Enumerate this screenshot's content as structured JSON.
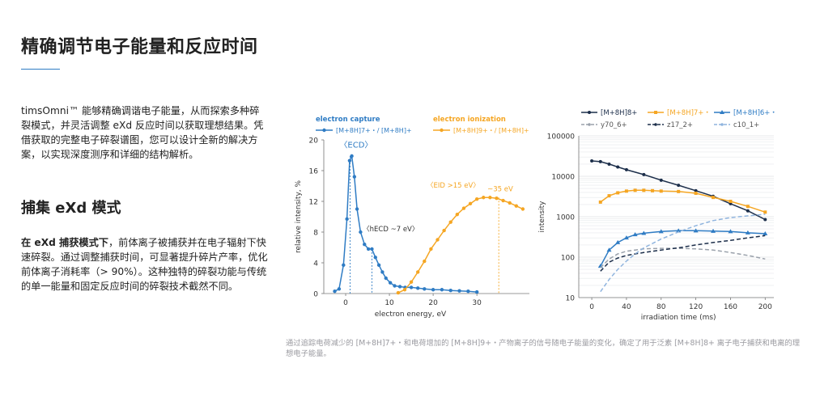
{
  "heading": "精确调节电子能量和反应时间",
  "intro": {
    "text": "timsOmni™ 能够精确调谐电子能量，从而探索多种碎裂模式，并灵活调整 eXd 反应时间以获取理想结果。凭借获取的完整电子碎裂谱图，您可以设计全新的解决方案，以实现深度测序和详细的结构解析。"
  },
  "section2": {
    "heading": "捕集 eXd 模式",
    "bold_lead": "在 eXd 捕获模式下",
    "text": "，前体离子被捕获并在电子辐射下快速碎裂。通过调整捕获时间，可显著提升碎片产率，优化前体离子消耗率（> 90%）。这种独特的碎裂功能与传统的单一能量和固定反应时间的碎裂技术截然不同。"
  },
  "caption": "通过追踪电荷减少的 [M+8H]7+・和电荷增加的 [M+8H]9+・产物离子的信号随电子能量的变化，确定了用于泛素 [M+8H]8+ 离子电子捕获和电离的理想电子能量。",
  "colors": {
    "blue": "#2f7cc4",
    "orange": "#f5a623",
    "navy": "#1c2e4a",
    "lightblue": "#8fb4de",
    "gray": "#9aa1ab",
    "accent": "#2f7cc4"
  },
  "chart_data": [
    {
      "type": "line",
      "xlabel": "electron energy, eV",
      "ylabel": "relative intensity, %",
      "xlim": [
        -5,
        42
      ],
      "ylim": [
        0,
        20
      ],
      "xticks": [
        0,
        10,
        20,
        30
      ],
      "yticks": [
        0,
        4,
        8,
        12,
        16,
        20
      ],
      "legend": {
        "placement": "top-left",
        "groups": [
          "electron capture",
          "electron ionization"
        ]
      },
      "series": [
        {
          "name": "[M+8H]7+・/ [M+8H]+",
          "group": "electron capture",
          "color": "#2f7cc4",
          "x": [
            -2.5,
            -1.5,
            -0.5,
            0.3,
            0.9,
            1.4,
            2.0,
            2.6,
            3.4,
            4.3,
            5.2,
            6.0,
            6.8,
            7.6,
            8.4,
            9.2,
            10.2,
            11.2,
            12.4,
            13.6,
            15,
            16.5,
            18,
            20,
            22,
            24,
            26,
            28,
            30
          ],
          "y": [
            0.3,
            0.6,
            3.7,
            9.7,
            17.3,
            17.9,
            15.2,
            11.0,
            8.0,
            6.4,
            5.8,
            5.8,
            4.7,
            3.7,
            2.8,
            2.0,
            1.4,
            1.0,
            0.9,
            0.8,
            0.8,
            0.7,
            0.6,
            0.5,
            0.5,
            0.4,
            0.35,
            0.3,
            0.2
          ]
        },
        {
          "name": "[M+8H]9+・/ [M+8H]+",
          "group": "electron ionization",
          "color": "#f5a623",
          "x": [
            12,
            13.5,
            15,
            16.5,
            18,
            19.5,
            21,
            22.5,
            24,
            25.5,
            27,
            28.5,
            30,
            31.5,
            33,
            34.5,
            36,
            37.5,
            39,
            40.5
          ],
          "y": [
            0.1,
            0.5,
            1.5,
            2.8,
            4.2,
            5.8,
            7.0,
            8.2,
            9.3,
            10.3,
            11.1,
            11.7,
            12.3,
            12.5,
            12.5,
            12.4,
            12.1,
            11.8,
            11.4,
            11.0
          ]
        }
      ],
      "annotations": [
        {
          "text": "ECD",
          "x": 1.0,
          "y": 19.0
        },
        {
          "text": "hECD ~7 eV",
          "x": 6.5,
          "y": 8.1
        },
        {
          "text": "EID >15 eV",
          "x": 18.5,
          "y": 13.8
        },
        {
          "text": "~35 eV",
          "x": 35,
          "y": 13.3
        }
      ],
      "vlines": [
        {
          "x": 1.0,
          "y": 17.9,
          "color": "#2f7cc4"
        },
        {
          "x": 6.0,
          "y": 5.8,
          "color": "#2f7cc4"
        },
        {
          "x": 35.0,
          "y": 12.5,
          "color": "#f5a623"
        }
      ]
    },
    {
      "type": "line",
      "xlabel": "irradiation time (ms)",
      "ylabel": "intensity",
      "yscale": "log",
      "xlim": [
        -15,
        210
      ],
      "ylim": [
        10,
        100000
      ],
      "xticks": [
        0,
        40,
        80,
        120,
        160,
        200
      ],
      "yticks": [
        10,
        100,
        1000,
        10000,
        100000
      ],
      "ytick_labels": [
        "10",
        "100",
        "1000",
        "10000",
        "100000"
      ],
      "grid": true,
      "legend": {
        "placement": "top"
      },
      "series": [
        {
          "name": "[M+8H]8+",
          "color": "#1c2e4a",
          "style": "solid",
          "x": [
            0,
            10,
            20,
            30,
            40,
            60,
            80,
            100,
            120,
            140,
            160,
            180,
            200
          ],
          "y": [
            24000,
            23000,
            20000,
            17000,
            14500,
            11000,
            8000,
            6000,
            4400,
            3200,
            2100,
            1400,
            850
          ]
        },
        {
          "name": "[M+8H]7+・",
          "color": "#f5a623",
          "style": "solid",
          "x": [
            10,
            20,
            30,
            40,
            50,
            60,
            70,
            80,
            100,
            120,
            140,
            160,
            180,
            200
          ],
          "y": [
            2300,
            3300,
            3900,
            4300,
            4500,
            4500,
            4400,
            4300,
            4200,
            3800,
            3000,
            2400,
            1800,
            1300
          ]
        },
        {
          "name": "[M+8H]6+・",
          "color": "#2f7cc4",
          "style": "solid",
          "x": [
            10,
            20,
            30,
            40,
            50,
            60,
            80,
            100,
            120,
            140,
            160,
            180,
            200
          ],
          "y": [
            60,
            150,
            230,
            300,
            360,
            390,
            430,
            450,
            450,
            440,
            430,
            400,
            380
          ]
        },
        {
          "name": "y70_6+",
          "color": "#9aa1ab",
          "style": "dashed",
          "x": [
            10,
            20,
            30,
            40,
            50,
            60,
            80,
            100,
            120,
            140,
            160,
            180,
            200
          ],
          "y": [
            55,
            90,
            120,
            140,
            150,
            160,
            165,
            165,
            160,
            150,
            130,
            110,
            90
          ]
        },
        {
          "name": "z17_2+",
          "color": "#1c2e4a",
          "style": "dashed",
          "x": [
            10,
            20,
            30,
            40,
            50,
            60,
            80,
            100,
            120,
            140,
            160,
            180,
            200
          ],
          "y": [
            45,
            75,
            95,
            110,
            120,
            130,
            150,
            170,
            200,
            230,
            260,
            300,
            340
          ]
        },
        {
          "name": "c10_1+",
          "color": "#8fb4de",
          "style": "dashed",
          "x": [
            10,
            20,
            30,
            40,
            50,
            60,
            80,
            100,
            120,
            140,
            160,
            180,
            200
          ],
          "y": [
            14,
            28,
            50,
            80,
            120,
            170,
            280,
            420,
            600,
            800,
            950,
            1050,
            1150
          ]
        }
      ]
    }
  ]
}
